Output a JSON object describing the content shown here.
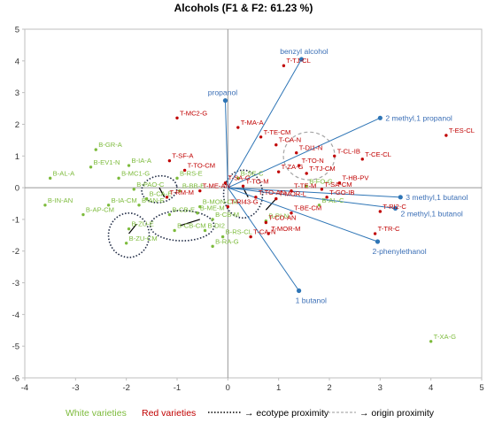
{
  "chart_data": {
    "type": "scatter",
    "title": "Alcohols (F1 & F2: 61.23 %)",
    "xlim": [
      -4,
      5
    ],
    "ylim": [
      -6,
      5
    ],
    "xticks": [
      "-4",
      "-3",
      "-2",
      "-1",
      "0",
      "1",
      "2",
      "3",
      "4",
      "5"
    ],
    "yticks": [
      "5",
      "4",
      "3",
      "2",
      "1",
      "0",
      "-1",
      "-2",
      "-3",
      "-4",
      "-5",
      "-6"
    ],
    "grid": false,
    "colors": {
      "white": "#7dbb3c",
      "red": "#c00000",
      "variable": "#2e75b6",
      "axis": "#999999"
    },
    "white_points": [
      {
        "label": "B-GR-A",
        "x": -2.6,
        "y": 1.2
      },
      {
        "label": "B-EV1-N",
        "x": -2.7,
        "y": 0.65
      },
      {
        "label": "B-IA-A",
        "x": -1.95,
        "y": 0.7
      },
      {
        "label": "B-AL-A",
        "x": -3.5,
        "y": 0.3
      },
      {
        "label": "B-MC1-G",
        "x": -2.15,
        "y": 0.3
      },
      {
        "label": "B-RS-E",
        "x": -1.0,
        "y": 0.3
      },
      {
        "label": "B-IN-AN",
        "x": -3.6,
        "y": -0.55
      },
      {
        "label": "B-AP-CM",
        "x": -2.85,
        "y": -0.85
      },
      {
        "label": "B-IA-CM",
        "x": -2.35,
        "y": -0.55
      },
      {
        "label": "B-PAO-C",
        "x": -1.85,
        "y": -0.05
      },
      {
        "label": "B-CA-E",
        "x": -1.6,
        "y": -0.35
      },
      {
        "label": "B-AN-E",
        "x": -1.75,
        "y": -0.55
      },
      {
        "label": "B-ZU-E",
        "x": -1.95,
        "y": -1.3
      },
      {
        "label": "B-ZU-CM",
        "x": -2.0,
        "y": -1.75
      },
      {
        "label": "B-BB-E",
        "x": -0.95,
        "y": -0.1
      },
      {
        "label": "B-MON-CM",
        "x": -0.55,
        "y": -0.6
      },
      {
        "label": "B-ME-M",
        "x": -0.6,
        "y": -0.8
      },
      {
        "label": "B-CB-E",
        "x": -1.15,
        "y": -0.85
      },
      {
        "label": "B-CB-M",
        "x": -0.3,
        "y": -1.0
      },
      {
        "label": "B-DI2",
        "x": -0.45,
        "y": -1.35
      },
      {
        "label": "B-CB-CM",
        "x": -1.05,
        "y": -1.35
      },
      {
        "label": "B-RS-CL",
        "x": -0.1,
        "y": -1.55
      },
      {
        "label": "B-RA-G",
        "x": -0.3,
        "y": -1.85
      },
      {
        "label": "B-FO-G",
        "x": 1.55,
        "y": 0.05
      },
      {
        "label": "B-AL-C",
        "x": 1.8,
        "y": -0.55
      },
      {
        "label": "B-PI-N",
        "x": 0.75,
        "y": -1.05
      },
      {
        "label": "B-SE-C",
        "x": 0.2,
        "y": 0.3
      },
      {
        "label": "T-XA-G",
        "x": 4.0,
        "y": -4.85
      }
    ],
    "red_points": [
      {
        "label": "T-TJ-CL",
        "x": 1.1,
        "y": 3.85
      },
      {
        "label": "T-MC2-G",
        "x": -1.0,
        "y": 2.2
      },
      {
        "label": "T-MA-A",
        "x": 0.2,
        "y": 1.9
      },
      {
        "label": "T-TE-CM",
        "x": 0.65,
        "y": 1.6
      },
      {
        "label": "T-ES-CL",
        "x": 4.3,
        "y": 1.65
      },
      {
        "label": "T-CA-N",
        "x": 0.95,
        "y": 1.35
      },
      {
        "label": "T-DI1-N",
        "x": 1.35,
        "y": 1.1
      },
      {
        "label": "T-CL-IB",
        "x": 2.1,
        "y": 1.0
      },
      {
        "label": "T-CE-CL",
        "x": 2.65,
        "y": 0.9
      },
      {
        "label": "T-SF-A",
        "x": -1.15,
        "y": 0.85
      },
      {
        "label": "T-TO-N",
        "x": 1.4,
        "y": 0.7
      },
      {
        "label": "T-TO-CM",
        "x": -0.85,
        "y": 0.55
      },
      {
        "label": "T-ZA-G",
        "x": 1.0,
        "y": 0.5
      },
      {
        "label": "T-TJ-CM",
        "x": 1.55,
        "y": 0.45
      },
      {
        "label": "T-HB-PV",
        "x": 2.2,
        "y": 0.15
      },
      {
        "label": "T-SA-CM",
        "x": 1.85,
        "y": -0.05
      },
      {
        "label": "T-SA-G",
        "x": -0.05,
        "y": 0.15
      },
      {
        "label": "T-ME-AN",
        "x": -0.55,
        "y": -0.1
      },
      {
        "label": "T-RM-M",
        "x": -1.2,
        "y": -0.3
      },
      {
        "label": "T-TO-M",
        "x": 0.3,
        "y": 0.05
      },
      {
        "label": "T-TE-M",
        "x": 1.25,
        "y": -0.1
      },
      {
        "label": "T-GO-IB",
        "x": 1.95,
        "y": -0.3
      },
      {
        "label": "T-TO-AN",
        "x": 0.55,
        "y": -0.3
      },
      {
        "label": "T-MOR-L",
        "x": 0.95,
        "y": -0.35
      },
      {
        "label": "T-RI43-G",
        "x": 0.0,
        "y": -0.6
      },
      {
        "label": "T-BE-CM",
        "x": 1.25,
        "y": -0.8
      },
      {
        "label": "T-RI2-C",
        "x": 3.0,
        "y": -0.75
      },
      {
        "label": "T-CO-AN",
        "x": 0.75,
        "y": -1.1
      },
      {
        "label": "T-MOR-M",
        "x": 0.8,
        "y": -1.45
      },
      {
        "label": "T-CA-N",
        "x": 0.45,
        "y": -1.55
      },
      {
        "label": "T-TR-C",
        "x": 2.9,
        "y": -1.45
      }
    ],
    "variables": [
      {
        "label": "benzyl alcohol",
        "x": 1.45,
        "y": 4.05
      },
      {
        "label": "propanol",
        "x": -0.05,
        "y": 2.75
      },
      {
        "label": "2 methyl,1 propanol",
        "x": 3.0,
        "y": 2.2
      },
      {
        "label": "3 methyl,1 butanol",
        "x": 3.4,
        "y": -0.3
      },
      {
        "label": "2 methyl,1 butanol",
        "x": 3.3,
        "y": -0.65
      },
      {
        "label": "2-phenylethanol",
        "x": 2.95,
        "y": -1.7
      },
      {
        "label": "1 butanol",
        "x": 1.4,
        "y": -3.25
      }
    ],
    "legend": {
      "white": "White varieties",
      "red": "Red varieties",
      "ecotype": "→ ecotype proximity",
      "origin": "→ origin proximity"
    }
  }
}
